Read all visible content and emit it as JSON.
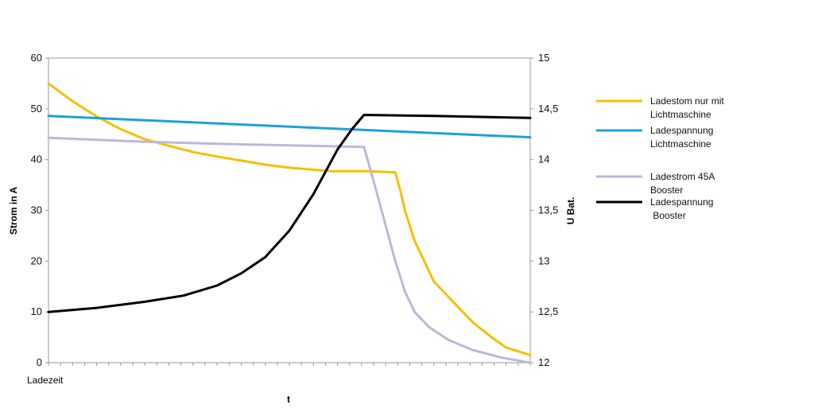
{
  "chart_data": {
    "type": "line",
    "xlabel": "t",
    "x_tick_label": "Ladezeit",
    "ylabel_left": "Strom in A",
    "ylabel_right": "U Bat.",
    "ylim_left": [
      0,
      60
    ],
    "ylim_right": [
      12,
      15
    ],
    "yticks_left": [
      "0",
      "10",
      "20",
      "30",
      "40",
      "50",
      "60"
    ],
    "yticks_right": [
      "12",
      "12,5",
      "13",
      "13,5",
      "14",
      "14,5",
      "15"
    ],
    "xlim": [
      0,
      100
    ],
    "x_minor_ticks": 40,
    "grid": false,
    "legend_position": "right",
    "series": [
      {
        "name": "Ladestom nur mit Lichtmaschine",
        "legend_lines": [
          "Ladestom nur mit",
          "Lichtmaschine"
        ],
        "axis": "left",
        "color": "#F5C000",
        "points": [
          [
            0,
            55
          ],
          [
            5,
            51.5
          ],
          [
            10,
            48.5
          ],
          [
            15,
            46
          ],
          [
            20,
            44
          ],
          [
            25,
            42.7
          ],
          [
            30,
            41.5
          ],
          [
            35,
            40.6
          ],
          [
            40,
            39.8
          ],
          [
            45,
            39
          ],
          [
            50,
            38.4
          ],
          [
            55,
            38
          ],
          [
            59,
            37.7
          ],
          [
            66,
            37.7
          ],
          [
            72,
            37.5
          ],
          [
            73,
            34
          ],
          [
            74,
            30
          ],
          [
            76,
            24
          ],
          [
            78,
            20
          ],
          [
            80,
            16
          ],
          [
            84,
            12
          ],
          [
            88,
            8
          ],
          [
            92,
            5
          ],
          [
            95,
            3
          ],
          [
            100,
            1.5
          ]
        ]
      },
      {
        "name": "Ladespannung Lichtmaschine",
        "legend_lines": [
          "Ladespannung",
          "Lichtmaschine"
        ],
        "axis": "right",
        "color": "#1EA0DC",
        "points": [
          [
            0,
            14.43
          ],
          [
            100,
            14.22
          ]
        ]
      },
      {
        "name": "Ladestrom 45A Booster",
        "legend_lines": [
          "Ladestrom 45A",
          "Booster"
        ],
        "axis": "left",
        "color": "#BFB6DC",
        "points": [
          [
            0,
            44.3
          ],
          [
            20,
            43.5
          ],
          [
            40,
            43
          ],
          [
            55,
            42.7
          ],
          [
            65.5,
            42.5
          ],
          [
            68,
            34
          ],
          [
            70,
            27
          ],
          [
            72,
            20
          ],
          [
            74,
            14
          ],
          [
            76,
            10
          ],
          [
            79,
            7
          ],
          [
            83,
            4.5
          ],
          [
            88,
            2.5
          ],
          [
            94,
            1
          ],
          [
            100,
            0
          ]
        ]
      },
      {
        "name": "Ladespannung Booster",
        "legend_lines": [
          "Ladespannung",
          " Booster"
        ],
        "axis": "right",
        "color": "#000000",
        "points": [
          [
            0,
            12.5
          ],
          [
            10,
            12.54
          ],
          [
            20,
            12.6
          ],
          [
            28,
            12.66
          ],
          [
            35,
            12.76
          ],
          [
            40,
            12.88
          ],
          [
            45,
            13.04
          ],
          [
            50,
            13.3
          ],
          [
            55,
            13.66
          ],
          [
            60,
            14.1
          ],
          [
            63,
            14.3
          ],
          [
            65.5,
            14.44
          ],
          [
            80,
            14.43
          ],
          [
            100,
            14.41
          ]
        ]
      }
    ]
  }
}
